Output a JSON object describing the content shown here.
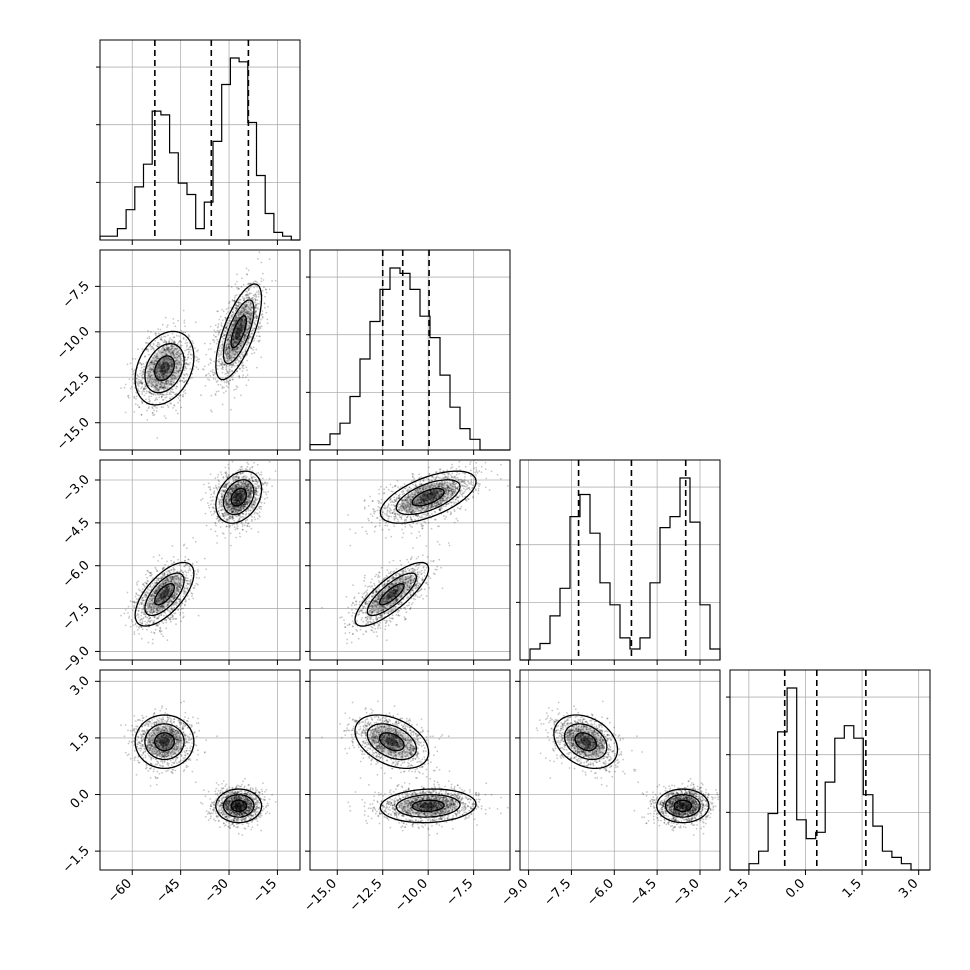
{
  "chart_data": {
    "type": "corner",
    "grid": true,
    "parameters": [
      {
        "index": 0,
        "range": [
          -70,
          -8
        ],
        "ticks": [
          -60,
          -45,
          -30,
          -15
        ],
        "tick_labels": [
          "−60",
          "−45",
          "−30",
          "−15"
        ],
        "quantiles": [
          -53,
          -35.5,
          -24
        ],
        "histogram": [
          1,
          1,
          3,
          8,
          14,
          20,
          34,
          33,
          23,
          15,
          12,
          3,
          10,
          26,
          41,
          48,
          47,
          31,
          17,
          7,
          2,
          1,
          0
        ]
      },
      {
        "index": 1,
        "range": [
          -16.5,
          -5.5
        ],
        "ticks": [
          -15.0,
          -12.5,
          -10.0,
          -7.5
        ],
        "tick_labels": [
          "−15.0",
          "−12.5",
          "−10.0",
          "−7.5"
        ],
        "quantiles": [
          -12.5,
          -11.4,
          -9.95
        ],
        "histogram": [
          1,
          1,
          3,
          5,
          10,
          17,
          24,
          30,
          34,
          33,
          30,
          25,
          21,
          14,
          8,
          4,
          2,
          0,
          0,
          0
        ]
      },
      {
        "index": 2,
        "range": [
          -9.3,
          -2.3
        ],
        "ticks": [
          -9.0,
          -7.5,
          -6.0,
          -4.5,
          -3.0
        ],
        "tick_labels": [
          "−9.0",
          "−7.5",
          "−6.0",
          "−4.5",
          "−3.0"
        ],
        "quantiles": [
          -7.25,
          -5.4,
          -3.5
        ],
        "histogram": [
          0,
          2,
          3,
          8,
          13,
          26,
          30,
          23,
          14,
          10,
          4,
          2,
          4,
          14,
          24,
          26,
          33,
          25,
          10,
          2
        ]
      },
      {
        "index": 3,
        "range": [
          -2.0,
          3.3
        ],
        "ticks": [
          -1.5,
          0.0,
          1.5,
          3.0
        ],
        "tick_labels": [
          "−1.5",
          "0.0",
          "1.5",
          "3.0"
        ],
        "quantiles": [
          -0.55,
          0.3,
          1.6
        ],
        "histogram": [
          0,
          0,
          1,
          3,
          9,
          22,
          29,
          8,
          5,
          6,
          14,
          21,
          23,
          21,
          12,
          7,
          3,
          2,
          1,
          0,
          0
        ]
      }
    ],
    "clusters": [
      {
        "weight": 0.45,
        "mean": [
          -50,
          -12,
          -7.0,
          1.4
        ],
        "std": [
          4.5,
          1.0,
          0.55,
          0.35
        ],
        "corr": [
          [
            1,
            0.3,
            0.65,
            0
          ],
          [
            0.3,
            1,
            0.8,
            -0.4
          ],
          [
            0.65,
            0.8,
            1,
            -0.3
          ],
          [
            0,
            -0.4,
            -0.3,
            1
          ]
        ]
      },
      {
        "weight": 0.55,
        "mean": [
          -27,
          -10,
          -3.6,
          -0.3
        ],
        "std": [
          3.5,
          1.3,
          0.45,
          0.22
        ],
        "corr": [
          [
            1,
            0.7,
            0.3,
            0
          ],
          [
            0.7,
            1,
            0.6,
            0.1
          ],
          [
            0.3,
            0.6,
            1,
            0
          ],
          [
            0,
            0.1,
            0,
            1
          ]
        ]
      }
    ],
    "contour_levels": [
      0.5,
      1.0,
      1.5
    ],
    "colors": {
      "axis": "#000000",
      "grid": "#b0b0b0",
      "points": "#000000",
      "density": "#000000",
      "contour": "#000000"
    }
  }
}
